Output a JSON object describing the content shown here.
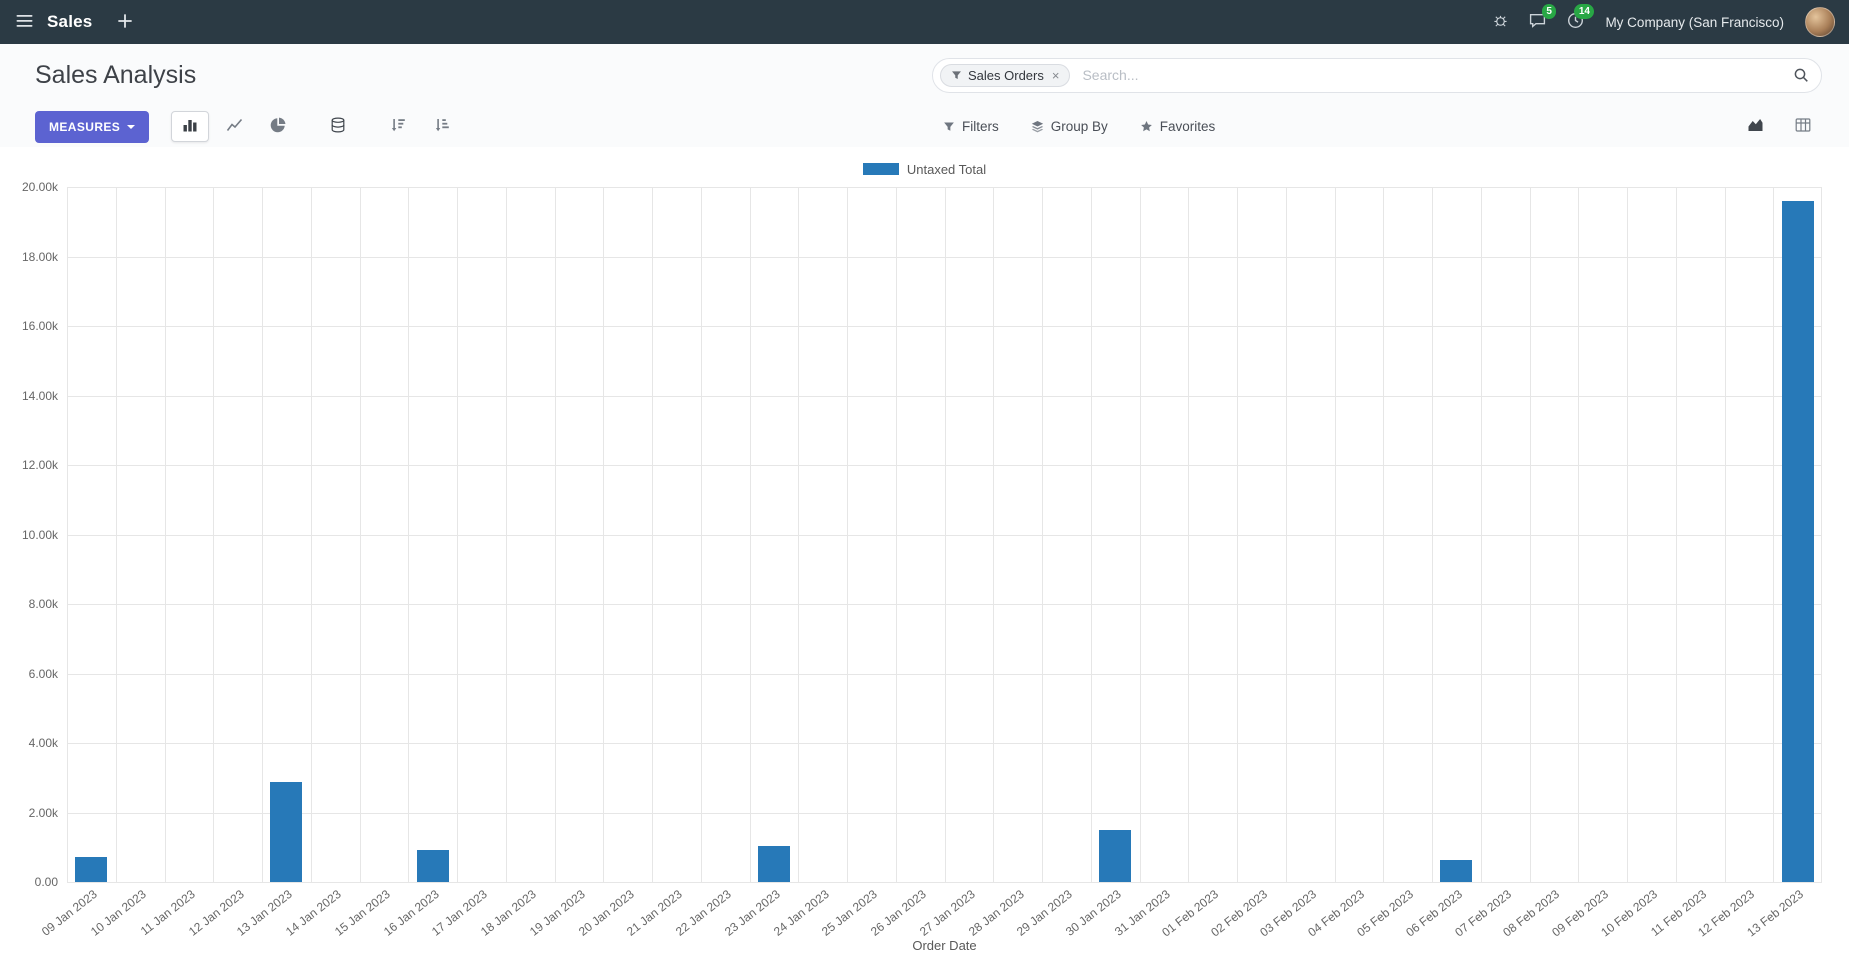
{
  "nav": {
    "app_name": "Sales",
    "messages_badge": "5",
    "activities_badge": "14",
    "company": "My Company (San Francisco)"
  },
  "control_panel": {
    "title": "Sales Analysis",
    "search": {
      "facet_label": "Sales Orders",
      "facet_remove": "×",
      "placeholder": "Search..."
    },
    "measures_label": "MEASURES",
    "filters_label": "Filters",
    "group_by_label": "Group By",
    "favorites_label": "Favorites"
  },
  "icons": [
    "menu-icon",
    "plus-icon",
    "bug-icon",
    "messages-icon",
    "activities-icon",
    "search-icon",
    "filter-icon",
    "bar-chart-icon",
    "line-chart-icon",
    "pie-chart-icon",
    "stacked-icon",
    "sort-desc-icon",
    "sort-asc-icon",
    "group-by-icon",
    "favorites-icon",
    "area-chart-view-icon",
    "pivot-view-icon"
  ],
  "colors": {
    "navbar": "#2b3a44",
    "primary_button": "#5c63d1",
    "bar": "#2779b8",
    "badge": "#28a745",
    "grid": "#e6e6e6"
  },
  "chart_data": {
    "type": "bar",
    "title": "",
    "xlabel": "Order Date",
    "ylabel": "",
    "ylim": [
      0,
      20000
    ],
    "ytick_step": 2000,
    "grid": true,
    "legend_position": "top",
    "ytick_labels": [
      "0.00",
      "2.00k",
      "4.00k",
      "6.00k",
      "8.00k",
      "10.00k",
      "12.00k",
      "14.00k",
      "16.00k",
      "18.00k",
      "20.00k"
    ],
    "categories": [
      "09 Jan 2023",
      "10 Jan 2023",
      "11 Jan 2023",
      "12 Jan 2023",
      "13 Jan 2023",
      "14 Jan 2023",
      "15 Jan 2023",
      "16 Jan 2023",
      "17 Jan 2023",
      "18 Jan 2023",
      "19 Jan 2023",
      "20 Jan 2023",
      "21 Jan 2023",
      "22 Jan 2023",
      "23 Jan 2023",
      "24 Jan 2023",
      "25 Jan 2023",
      "26 Jan 2023",
      "27 Jan 2023",
      "28 Jan 2023",
      "29 Jan 2023",
      "30 Jan 2023",
      "31 Jan 2023",
      "01 Feb 2023",
      "02 Feb 2023",
      "03 Feb 2023",
      "04 Feb 2023",
      "05 Feb 2023",
      "06 Feb 2023",
      "07 Feb 2023",
      "08 Feb 2023",
      "09 Feb 2023",
      "10 Feb 2023",
      "11 Feb 2023",
      "12 Feb 2023",
      "13 Feb 2023"
    ],
    "series": [
      {
        "name": "Untaxed Total",
        "color": "#2779b8",
        "values": [
          720,
          0,
          0,
          0,
          2880,
          0,
          0,
          930,
          0,
          0,
          0,
          0,
          0,
          0,
          1050,
          0,
          0,
          0,
          0,
          0,
          0,
          1490,
          0,
          0,
          0,
          0,
          0,
          0,
          620,
          0,
          0,
          0,
          0,
          0,
          0,
          19600
        ]
      }
    ]
  }
}
